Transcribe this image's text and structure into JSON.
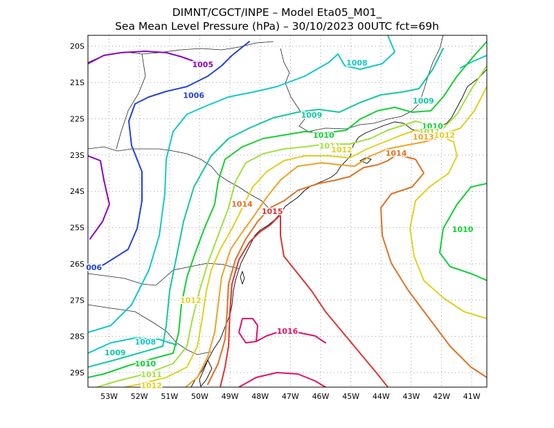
{
  "header": {
    "title_line1": "DIMNT/CGCT/INPE –  Model Eta05_M01_",
    "title_line2": "Sea Mean Level Pressure (hPa) – 30/10/2023 00UTC fct=69h"
  },
  "axes": {
    "x_ticks": [
      "53W",
      "52W",
      "51W",
      "50W",
      "49W",
      "48W",
      "47W",
      "46W",
      "45W",
      "44W",
      "43W",
      "42W",
      "41W"
    ],
    "y_ticks": [
      "20S",
      "21S",
      "22S",
      "23S",
      "24S",
      "25S",
      "26S",
      "27S",
      "28S",
      "29S"
    ],
    "lon_range": [
      -53.7,
      -40.5
    ],
    "lat_range": [
      -29.4,
      -19.7
    ],
    "grid": true
  },
  "contour_labels": [
    {
      "text": "1005",
      "lon": -49.9,
      "lat": -20.5,
      "color": "#8a00c8"
    },
    {
      "text": "1006",
      "lon": -50.2,
      "lat": -21.35,
      "color": "#2040e0"
    },
    {
      "text": "006",
      "lon": -53.5,
      "lat": -26.1,
      "color": "#2040e0"
    },
    {
      "text": "1008",
      "lon": -44.8,
      "lat": -20.45,
      "color": "#10c8c8"
    },
    {
      "text": "1008",
      "lon": -51.8,
      "lat": -28.15,
      "color": "#10c8c8"
    },
    {
      "text": "1009",
      "lon": -46.3,
      "lat": -21.9,
      "color": "#10c8a0"
    },
    {
      "text": "1009",
      "lon": -42.6,
      "lat": -21.5,
      "color": "#10c8a0"
    },
    {
      "text": "1009",
      "lon": -52.8,
      "lat": -28.45,
      "color": "#10c8a0"
    },
    {
      "text": "1010",
      "lon": -45.9,
      "lat": -22.45,
      "color": "#10d030"
    },
    {
      "text": "1010",
      "lon": -42.3,
      "lat": -22.2,
      "color": "#10d030"
    },
    {
      "text": "1010",
      "lon": -41.3,
      "lat": -25.05,
      "color": "#10d030"
    },
    {
      "text": "1010",
      "lon": -51.8,
      "lat": -28.75,
      "color": "#10d030"
    },
    {
      "text": "1011",
      "lon": -45.7,
      "lat": -22.75,
      "color": "#a0e040"
    },
    {
      "text": "1011",
      "lon": -42.4,
      "lat": -22.35,
      "color": "#a0e040"
    },
    {
      "text": "1011",
      "lon": -51.6,
      "lat": -29.05,
      "color": "#a0e040"
    },
    {
      "text": "1012",
      "lon": -45.3,
      "lat": -22.85,
      "color": "#e0d020"
    },
    {
      "text": "1012",
      "lon": -41.9,
      "lat": -22.45,
      "color": "#e0d020"
    },
    {
      "text": "1012",
      "lon": -50.3,
      "lat": -27.0,
      "color": "#e0d020"
    },
    {
      "text": "1012",
      "lon": -51.6,
      "lat": -29.35,
      "color": "#e0d020"
    },
    {
      "text": "1013",
      "lon": -42.6,
      "lat": -22.5,
      "color": "#f0a020"
    },
    {
      "text": "1014",
      "lon": -43.5,
      "lat": -22.95,
      "color": "#e07020"
    },
    {
      "text": "1014",
      "lon": -48.6,
      "lat": -24.35,
      "color": "#e07020"
    },
    {
      "text": "1015",
      "lon": -47.6,
      "lat": -24.55,
      "color": "#e03030"
    },
    {
      "text": "1016",
      "lon": -47.1,
      "lat": -27.85,
      "color": "#e0106a"
    }
  ]
}
